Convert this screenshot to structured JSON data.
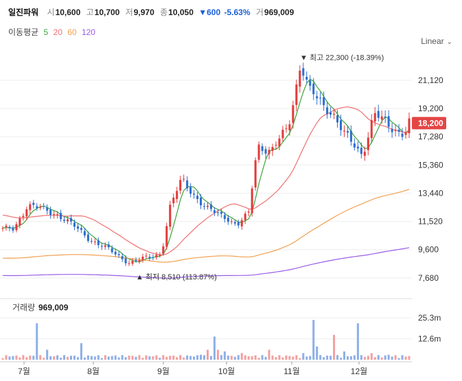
{
  "header": {
    "name": "일진파워",
    "open_label": "시",
    "open": "10,600",
    "high_label": "고",
    "high": "10,700",
    "low_label": "저",
    "low": "9,970",
    "close_label": "종",
    "close": "10,050",
    "change": "▼600",
    "change_pct": "-5.63%",
    "volume_label": "거",
    "volume": "969,009"
  },
  "ma_legend": {
    "label": "이동평균",
    "periods": [
      {
        "text": "5",
        "color": "#3aa53a"
      },
      {
        "text": "20",
        "color": "#f07070"
      },
      {
        "text": "60",
        "color": "#f0a050"
      },
      {
        "text": "120",
        "color": "#9a5ce6"
      }
    ]
  },
  "scale_selector": {
    "label": "Linear"
  },
  "colors": {
    "up": "#e33b3b",
    "down": "#2f6fcf",
    "grid": "#eeeeee",
    "price_tag": "#e34545"
  },
  "chart_data": {
    "type": "candlestick",
    "x_labels": [
      "7월",
      "8월",
      "9월",
      "10월",
      "11월",
      "12월"
    ],
    "y_ticks": [
      7680,
      9600,
      11520,
      13440,
      15360,
      17280,
      19200,
      21120
    ],
    "y_tick_labels": [
      "7,680",
      "9,600",
      "11,520",
      "13,440",
      "15,360",
      "17,280",
      "19,200",
      "21,120"
    ],
    "ylim": [
      6600,
      23400
    ],
    "current_price": 18200,
    "current_price_label": "18,200",
    "max_annotation": {
      "text": "▼ 최고 22,300 (-18.39%)",
      "value": 22300
    },
    "min_annotation": {
      "text": "▲ 최저 8,510 (113.87%)",
      "value": 8510
    },
    "volume_panel": {
      "label": "거래량",
      "value_label": "969,009",
      "ticks": [
        "25.3m",
        "12.6m"
      ],
      "tick_values": [
        25.3,
        12.6
      ]
    },
    "ma_periods": [
      5,
      20,
      60,
      120
    ],
    "ma_colors": [
      "#3aa53a",
      "#f07070",
      "#f0a050",
      "#9a5ce6"
    ]
  }
}
